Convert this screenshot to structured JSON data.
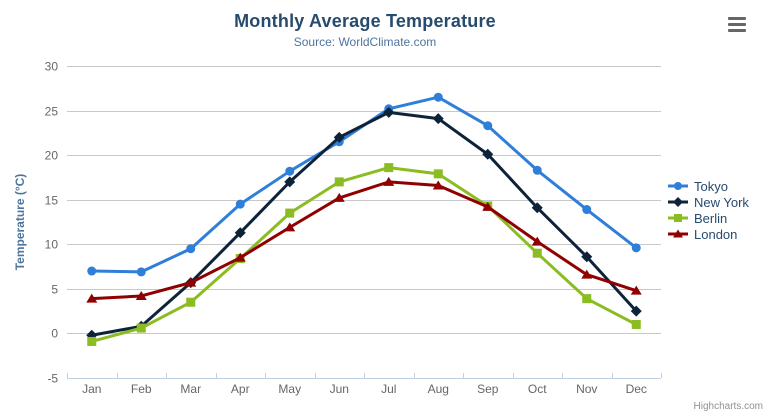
{
  "credit": "Highcharts.com",
  "export_menu": {
    "icon": "hamburger-menu-icon"
  },
  "chart_data": {
    "type": "line",
    "title": "Monthly Average Temperature",
    "subtitle": "Source: WorldClimate.com",
    "xlabel": "",
    "ylabel": "Temperature (°C)",
    "ylim": [
      -5,
      30
    ],
    "yticks": [
      -5,
      0,
      5,
      10,
      15,
      20,
      25,
      30
    ],
    "grid": "horizontal",
    "legend_position": "right-middle",
    "categories": [
      "Jan",
      "Feb",
      "Mar",
      "Apr",
      "May",
      "Jun",
      "Jul",
      "Aug",
      "Sep",
      "Oct",
      "Nov",
      "Dec"
    ],
    "series": [
      {
        "name": "Tokyo",
        "color": "#2f7ed8",
        "marker": "circle",
        "values": [
          7.0,
          6.9,
          9.5,
          14.5,
          18.2,
          21.5,
          25.2,
          26.5,
          23.3,
          18.3,
          13.9,
          9.6
        ]
      },
      {
        "name": "New York",
        "color": "#0d233a",
        "marker": "diamond",
        "values": [
          -0.2,
          0.8,
          5.7,
          11.3,
          17.0,
          22.0,
          24.8,
          24.1,
          20.1,
          14.1,
          8.6,
          2.5
        ]
      },
      {
        "name": "Berlin",
        "color": "#8bbc21",
        "marker": "square",
        "values": [
          -0.9,
          0.6,
          3.5,
          8.4,
          13.5,
          17.0,
          18.6,
          17.9,
          14.3,
          9.0,
          3.9,
          1.0
        ]
      },
      {
        "name": "London",
        "color": "#910000",
        "marker": "triangle",
        "values": [
          3.9,
          4.2,
          5.7,
          8.5,
          11.9,
          15.2,
          17.0,
          16.6,
          14.2,
          10.3,
          6.6,
          4.8
        ]
      }
    ],
    "style": {
      "title_color": "#274b6d",
      "subtitle_color": "#4d759e",
      "axis_title_color": "#4d759e",
      "tick_label_color": "#666666",
      "grid_color": "#c8c8c8",
      "axis_line_color": "#c0d0e0",
      "legend_text_color": "#274b6d",
      "credit_color": "#909090",
      "menu_icon_color": "#666666",
      "background": "#ffffff"
    }
  }
}
